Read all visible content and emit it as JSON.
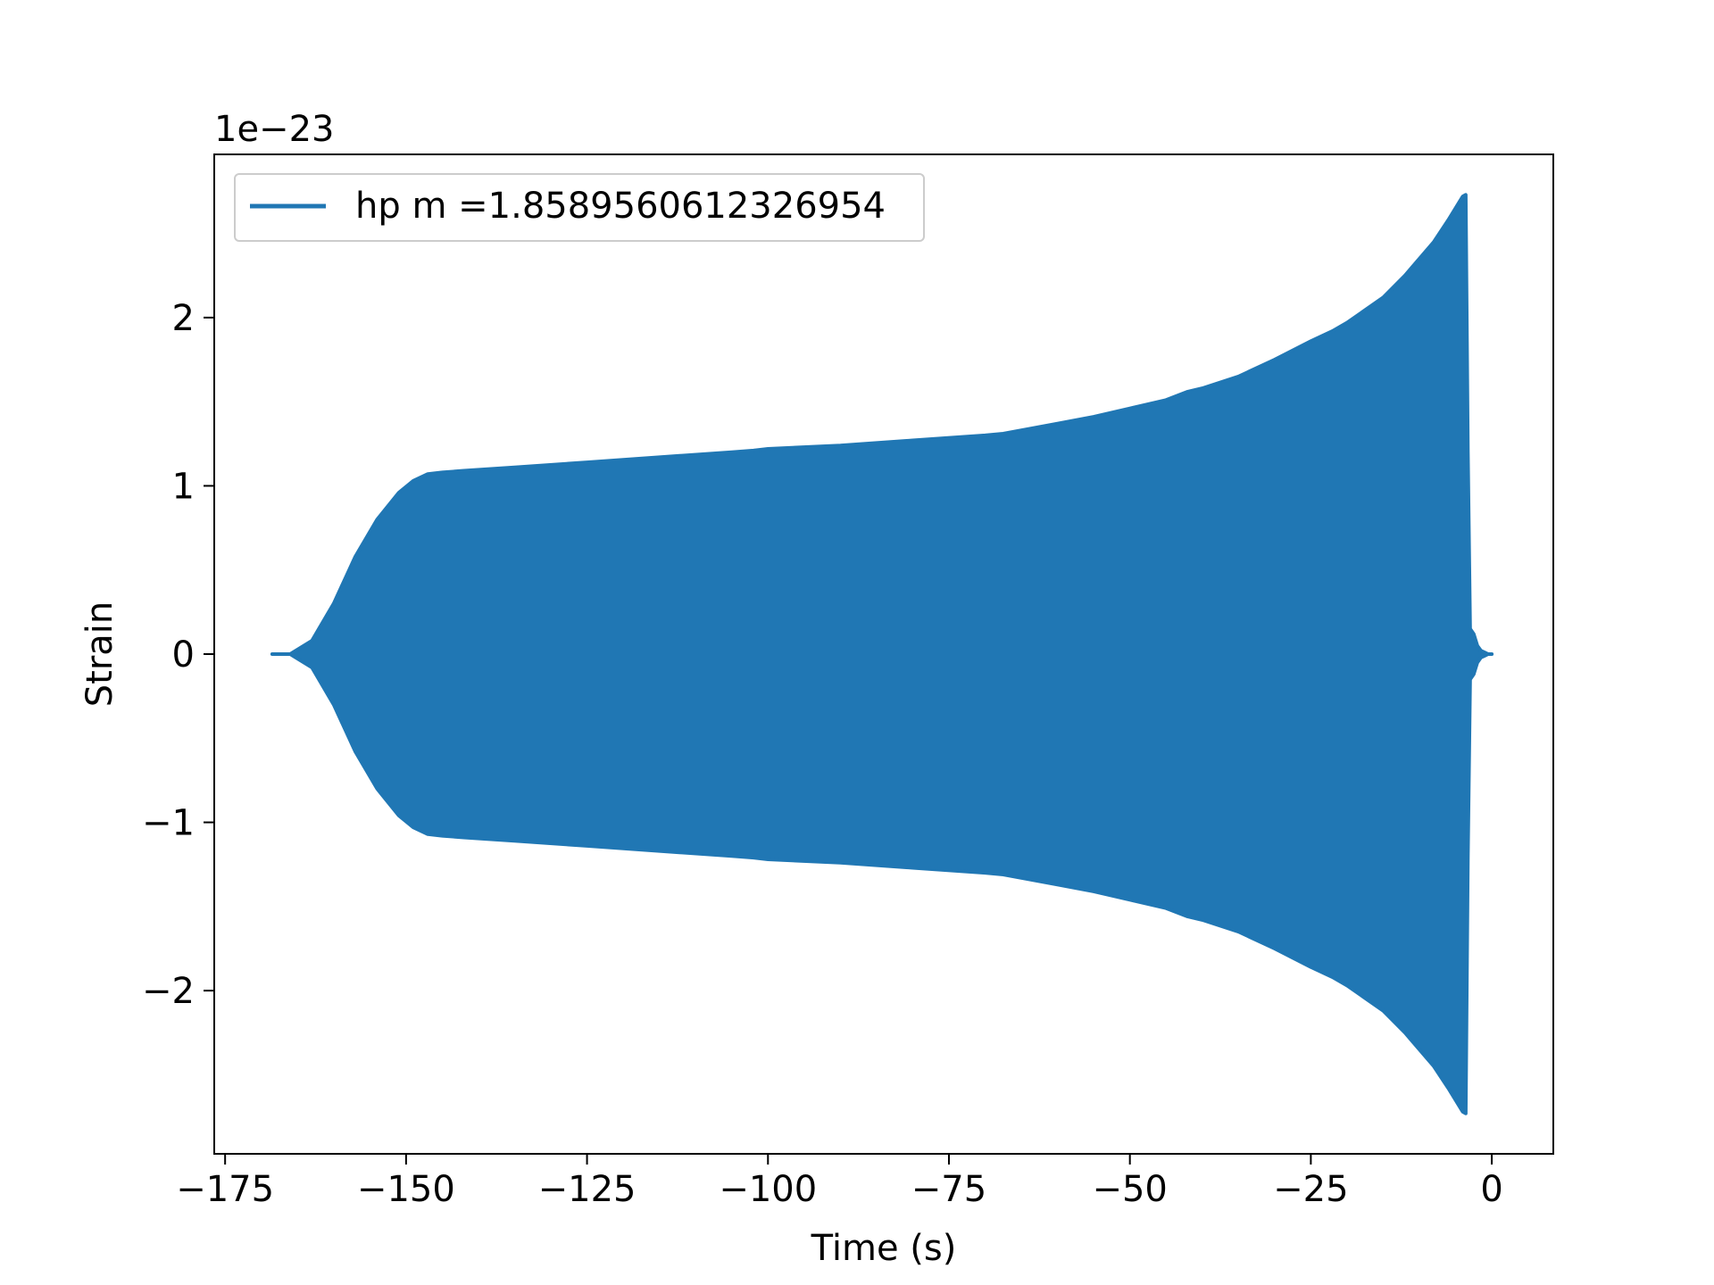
{
  "chart_data": {
    "type": "area",
    "xlabel": "Time (s)",
    "ylabel": "Strain",
    "offset_text": "1e−23",
    "y_multiplier": 1e-23,
    "xlim": [
      -176.5,
      8.5
    ],
    "ylim": [
      -2.97,
      2.97
    ],
    "xticks": [
      -175,
      -150,
      -125,
      -100,
      -75,
      -50,
      -25,
      0
    ],
    "xtick_labels": [
      "−175",
      "−150",
      "−125",
      "−100",
      "−75",
      "−50",
      "−25",
      "0"
    ],
    "yticks": [
      -2,
      -1,
      0,
      1,
      2
    ],
    "ytick_labels": [
      "−2",
      "−1",
      "0",
      "1",
      "2"
    ],
    "grid": false,
    "legend_position": "top-left",
    "color": "#2077b4",
    "series": [
      {
        "name": "hp m =1.8589560612326954",
        "envelope_upper": {
          "x": [
            -168.5,
            -166,
            -163,
            -160,
            -157,
            -154,
            -151,
            -149,
            -147,
            -145,
            -142,
            -135,
            -125,
            -115,
            -105,
            -102,
            -100,
            -90,
            -80,
            -70,
            -67.5,
            -65,
            -60,
            -55,
            -50,
            -45,
            -42,
            -40,
            -35,
            -30,
            -25,
            -22,
            -20,
            -15,
            -12,
            -11,
            -8,
            -6,
            -5,
            -4,
            -3.6,
            -3.3,
            -3.0,
            -2.5,
            -2,
            -1.5,
            -1,
            -0.5,
            0
          ],
          "y": [
            0.0,
            0.0,
            0.08,
            0.3,
            0.58,
            0.8,
            0.96,
            1.03,
            1.07,
            1.08,
            1.09,
            1.11,
            1.14,
            1.17,
            1.2,
            1.21,
            1.22,
            1.24,
            1.27,
            1.3,
            1.31,
            1.33,
            1.37,
            1.41,
            1.46,
            1.51,
            1.56,
            1.58,
            1.65,
            1.75,
            1.86,
            1.92,
            1.97,
            2.12,
            2.25,
            2.3,
            2.45,
            2.58,
            2.65,
            2.72,
            2.73,
            1.2,
            0.15,
            0.12,
            0.05,
            0.02,
            0.01,
            0.0,
            0.0
          ]
        },
        "envelope_lower": {
          "x": [
            -168.5,
            -166,
            -163,
            -160,
            -157,
            -154,
            -151,
            -149,
            -147,
            -145,
            -142,
            -135,
            -125,
            -115,
            -105,
            -102,
            -100,
            -90,
            -80,
            -70,
            -67.5,
            -65,
            -60,
            -55,
            -50,
            -45,
            -42,
            -40,
            -35,
            -30,
            -25,
            -22,
            -20,
            -15,
            -12,
            -11,
            -8,
            -6,
            -5,
            -4,
            -3.6,
            -3.3,
            -3.0,
            -2.5,
            -2,
            -1.5,
            -1,
            -0.5,
            0
          ],
          "y": [
            0.0,
            0.0,
            -0.08,
            -0.3,
            -0.58,
            -0.8,
            -0.96,
            -1.03,
            -1.07,
            -1.08,
            -1.09,
            -1.11,
            -1.14,
            -1.17,
            -1.2,
            -1.21,
            -1.22,
            -1.24,
            -1.27,
            -1.3,
            -1.31,
            -1.33,
            -1.37,
            -1.41,
            -1.46,
            -1.51,
            -1.56,
            -1.58,
            -1.65,
            -1.75,
            -1.86,
            -1.92,
            -1.97,
            -2.12,
            -2.25,
            -2.3,
            -2.45,
            -2.58,
            -2.65,
            -2.72,
            -2.73,
            -1.2,
            -0.15,
            -0.12,
            -0.05,
            -0.02,
            -0.01,
            0.0,
            0.0
          ]
        }
      }
    ]
  }
}
